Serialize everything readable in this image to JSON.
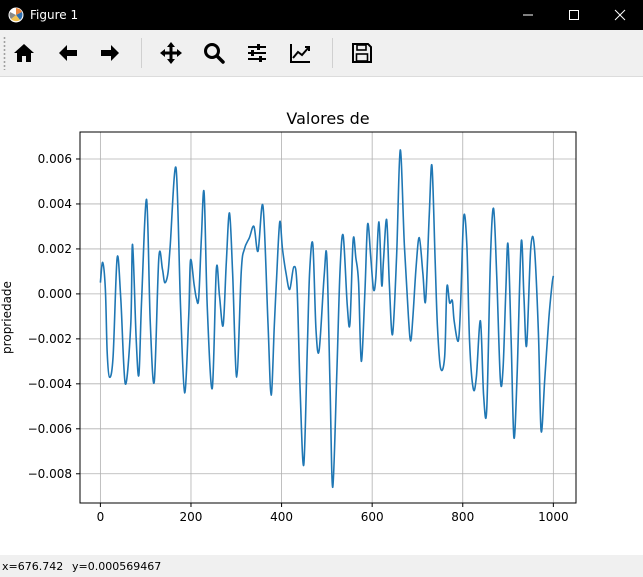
{
  "window": {
    "title": "Figure 1",
    "icon": "matplotlib-logo-icon",
    "controls": [
      "minimize-icon",
      "maximize-icon",
      "close-icon"
    ]
  },
  "toolbar": {
    "tools": [
      {
        "name": "home",
        "icon": "home-icon"
      },
      {
        "name": "back",
        "icon": "arrow-left-icon"
      },
      {
        "name": "forward",
        "icon": "arrow-right-icon"
      },
      {
        "name": "pan",
        "icon": "move-icon"
      },
      {
        "name": "zoom",
        "icon": "magnifier-icon"
      },
      {
        "name": "configure-subplots",
        "icon": "sliders-icon"
      },
      {
        "name": "edit-axis",
        "icon": "line-chart-icon"
      },
      {
        "name": "save",
        "icon": "floppy-disk-icon"
      }
    ]
  },
  "status": {
    "x": "x=676.742",
    "y": "y=0.000569467"
  },
  "colors": {
    "series": "#1f77b4",
    "grid": "#b0b0b0",
    "titlebar": "#000000",
    "toolbar": "#f0f0f0"
  },
  "chart_data": {
    "type": "line",
    "title": "Valores de",
    "xlabel": "",
    "ylabel": "propriedade",
    "xlim": [
      -45,
      1050
    ],
    "ylim": [
      -0.0093,
      0.0072
    ],
    "xticks": [
      0,
      200,
      400,
      600,
      800,
      1000
    ],
    "xtick_labels": [
      "0",
      "200",
      "400",
      "600",
      "800",
      "1000"
    ],
    "yticks": [
      -0.008,
      -0.006,
      -0.004,
      -0.002,
      0.0,
      0.002,
      0.004,
      0.006
    ],
    "ytick_labels": [
      "−0.008",
      "−0.006",
      "−0.004",
      "−0.002",
      "0.000",
      "0.002",
      "0.004",
      "0.006"
    ],
    "grid": true,
    "legend": null,
    "series": [
      {
        "points": [
          [
            0,
            0.0005
          ],
          [
            5,
            0.0014
          ],
          [
            11,
            0.0002
          ],
          [
            15,
            -0.0026
          ],
          [
            20,
            -0.0037
          ],
          [
            28,
            -0.0028
          ],
          [
            37,
            0.0016
          ],
          [
            45,
            -0.0002
          ],
          [
            55,
            -0.004
          ],
          [
            67,
            -0.0014
          ],
          [
            71,
            0.0022
          ],
          [
            79,
            -0.002
          ],
          [
            85,
            -0.0036
          ],
          [
            91,
            -0.0003
          ],
          [
            102,
            0.0042
          ],
          [
            110,
            -0.0012
          ],
          [
            119,
            -0.0039
          ],
          [
            129,
            0.0016
          ],
          [
            137,
            0.0011
          ],
          [
            142,
            0.0005
          ],
          [
            149,
            0.0009
          ],
          [
            154,
            0.0021
          ],
          [
            167,
            0.0056
          ],
          [
            177,
            -0.0006
          ],
          [
            186,
            -0.0044
          ],
          [
            195,
            -0.001
          ],
          [
            199,
            0.0015
          ],
          [
            207,
            0.0004
          ],
          [
            212,
            -0.0002
          ],
          [
            217,
            -0.0002
          ],
          [
            223,
            0.0025
          ],
          [
            229,
            0.0045
          ],
          [
            236,
            -0.0006
          ],
          [
            247,
            -0.0042
          ],
          [
            256,
            0.0011
          ],
          [
            263,
            -0.0001
          ],
          [
            271,
            -0.0014
          ],
          [
            278,
            0.0014
          ],
          [
            285,
            0.0036
          ],
          [
            292,
            0.0009
          ],
          [
            301,
            -0.0037
          ],
          [
            311,
            0.001
          ],
          [
            318,
            0.002
          ],
          [
            329,
            0.0025
          ],
          [
            339,
            0.003
          ],
          [
            348,
            0.0019
          ],
          [
            359,
            0.0039
          ],
          [
            370,
            -0.0013
          ],
          [
            377,
            -0.0045
          ],
          [
            384,
            -0.0014
          ],
          [
            389,
            0.0007
          ],
          [
            396,
            0.0032
          ],
          [
            402,
            0.002
          ],
          [
            410,
            0.0009
          ],
          [
            418,
            0.0002
          ],
          [
            427,
            0.0012
          ],
          [
            434,
            0.0004
          ],
          [
            441,
            -0.0043
          ],
          [
            449,
            -0.0076
          ],
          [
            457,
            -0.0023
          ],
          [
            462,
            0.001
          ],
          [
            469,
            0.0022
          ],
          [
            476,
            -0.0016
          ],
          [
            483,
            -0.0025
          ],
          [
            494,
            0.0008
          ],
          [
            500,
            0.0016
          ],
          [
            507,
            -0.0041
          ],
          [
            513,
            -0.0086
          ],
          [
            522,
            -0.0035
          ],
          [
            529,
            0.001
          ],
          [
            536,
            0.0026
          ],
          [
            545,
            -0.0005
          ],
          [
            551,
            -0.0013
          ],
          [
            558,
            0.0024
          ],
          [
            564,
            0.0016
          ],
          [
            570,
            0.0005
          ],
          [
            576,
            -0.003
          ],
          [
            584,
            0.0001
          ],
          [
            590,
            0.0031
          ],
          [
            597,
            0.0016
          ],
          [
            603,
            0.0002
          ],
          [
            608,
            0.0007
          ],
          [
            615,
            0.0032
          ],
          [
            621,
            0.0004
          ],
          [
            625,
            0.0015
          ],
          [
            632,
            0.0033
          ],
          [
            638,
            0.0004
          ],
          [
            645,
            -0.0018
          ],
          [
            654,
            0.0017
          ],
          [
            662,
            0.0064
          ],
          [
            671,
            0.0022
          ],
          [
            680,
            -0.001
          ],
          [
            685,
            -0.0021
          ],
          [
            690,
            -0.001
          ],
          [
            697,
            0.0012
          ],
          [
            704,
            0.0025
          ],
          [
            712,
            0.0009
          ],
          [
            718,
            -0.0003
          ],
          [
            726,
            0.0035
          ],
          [
            732,
            0.0057
          ],
          [
            739,
            0.0015
          ],
          [
            744,
            -0.0014
          ],
          [
            751,
            -0.0033
          ],
          [
            760,
            -0.0028
          ],
          [
            765,
            0.0003
          ],
          [
            771,
            -0.0004
          ],
          [
            777,
            -0.0003
          ],
          [
            781,
            -0.0012
          ],
          [
            790,
            -0.0021
          ],
          [
            795,
            -0.0006
          ],
          [
            802,
            0.0034
          ],
          [
            809,
            0.0022
          ],
          [
            815,
            -0.0021
          ],
          [
            823,
            -0.0042
          ],
          [
            830,
            -0.0037
          ],
          [
            839,
            -0.0012
          ],
          [
            846,
            -0.0045
          ],
          [
            853,
            -0.0051
          ],
          [
            861,
            0.0015
          ],
          [
            868,
            0.0038
          ],
          [
            875,
            0.0008
          ],
          [
            883,
            -0.0038
          ],
          [
            889,
            -0.0033
          ],
          [
            895,
            0.0001
          ],
          [
            900,
            0.0022
          ],
          [
            907,
            -0.0022
          ],
          [
            913,
            -0.0064
          ],
          [
            920,
            -0.0036
          ],
          [
            929,
            0.0023
          ],
          [
            935,
            -0.0001
          ],
          [
            941,
            -0.0023
          ],
          [
            950,
            0.002
          ],
          [
            958,
            0.0021
          ],
          [
            967,
            -0.0017
          ],
          [
            973,
            -0.0061
          ],
          [
            981,
            -0.0038
          ],
          [
            990,
            -0.0011
          ],
          [
            997,
            0.0004
          ],
          [
            1000,
            0.0008
          ]
        ]
      }
    ]
  }
}
